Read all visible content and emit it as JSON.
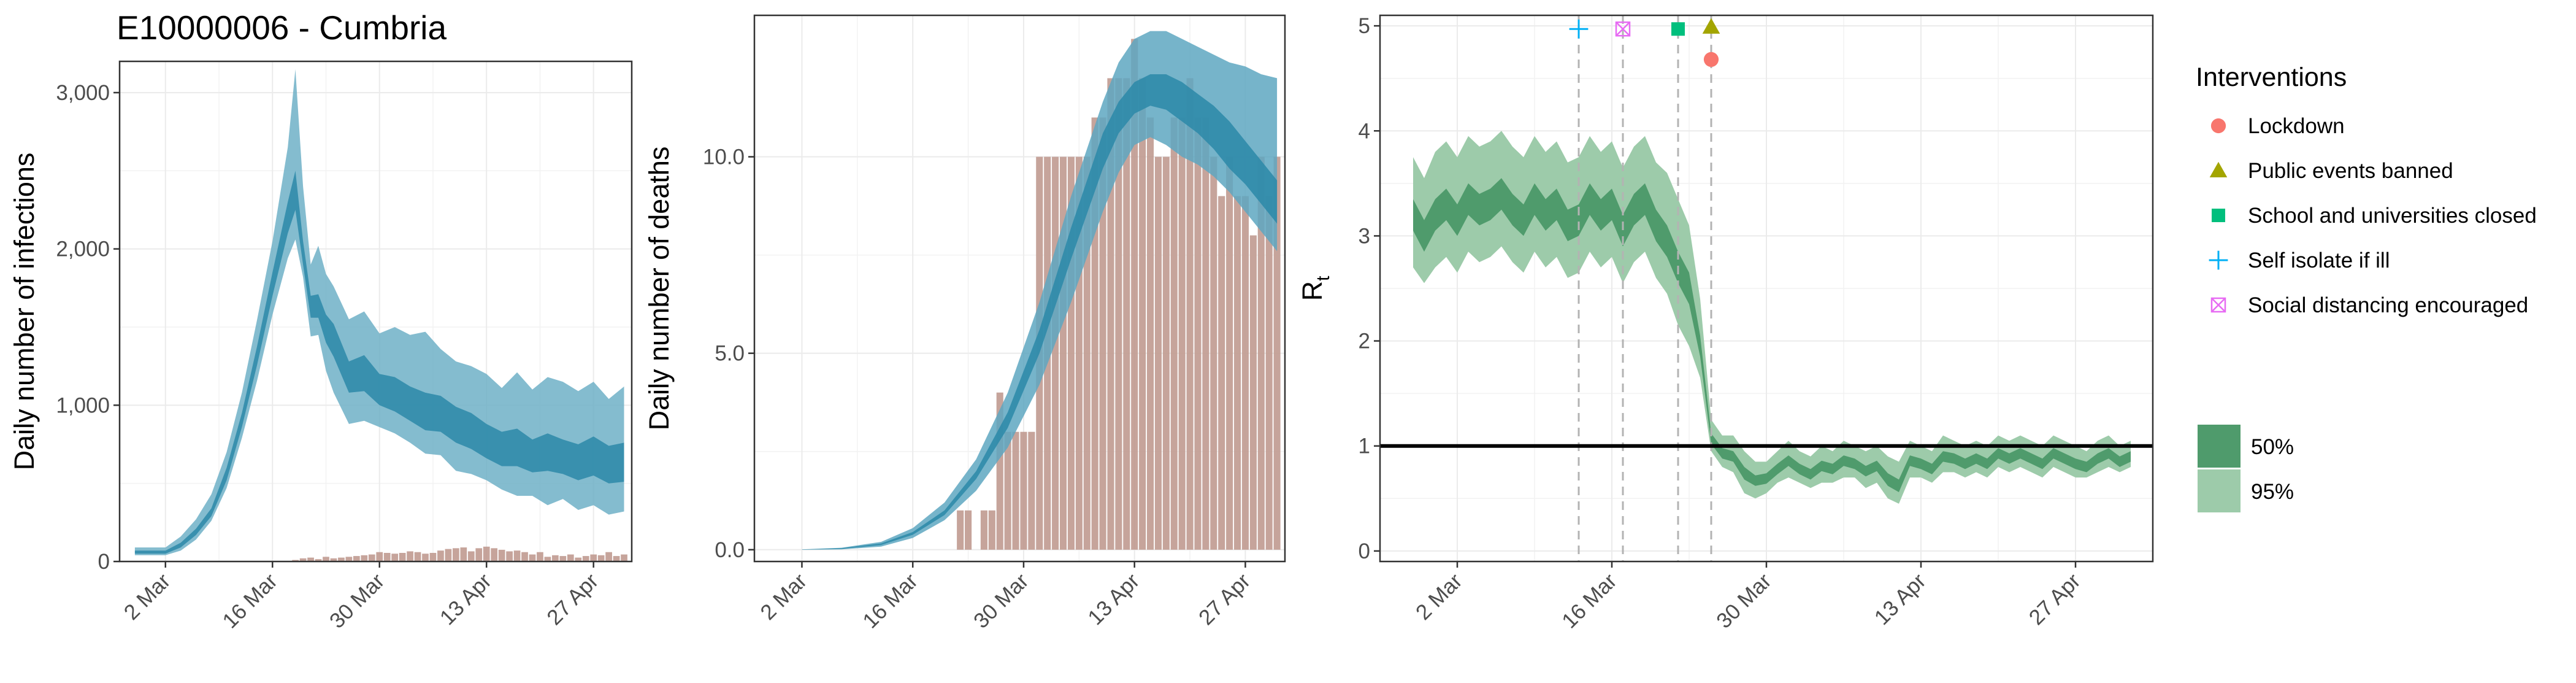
{
  "title": "E10000006 - Cumbria",
  "colors": {
    "infection_band_95": "#6fb0c7",
    "infection_band_50": "#2b88a8",
    "deaths_band_95": "#5ea7c1",
    "deaths_band_50": "#2b88a8",
    "bars": "#c09a90",
    "rt_band_95": "#9dcbaa",
    "rt_band_50": "#4f9b6c",
    "reference_line": "#000000",
    "lockdown": "#f8766d",
    "public_events_banned": "#a3a500",
    "school_closed": "#00bf7d",
    "self_isolate": "#00b0f6",
    "social_distancing": "#e76bf3"
  },
  "chart_data": [
    {
      "type": "area",
      "id": "infections",
      "title": "",
      "xlabel": "",
      "ylabel": "Daily number of infections",
      "x_ticks": [
        "2 Mar",
        "16 Mar",
        "30 Mar",
        "13 Apr",
        "27 Apr"
      ],
      "x_tick_days": [
        0,
        14,
        28,
        42,
        56
      ],
      "x_range_days": [
        -6,
        61
      ],
      "y_ticks": [
        "0",
        "1,000",
        "2,000",
        "3,000"
      ],
      "y_tick_values": [
        0,
        1000,
        2000,
        3000
      ],
      "ylim": [
        0,
        3200
      ],
      "grid": true,
      "band_95": {
        "x_days": [
          -4,
          0,
          2,
          4,
          6,
          8,
          10,
          12,
          14,
          16,
          17,
          18,
          19,
          20,
          21,
          22,
          24,
          26,
          28,
          30,
          32,
          34,
          36,
          38,
          40,
          42,
          44,
          46,
          48,
          50,
          52,
          54,
          56,
          58,
          60
        ],
        "upper": [
          90,
          90,
          160,
          270,
          430,
          700,
          1080,
          1550,
          2050,
          2650,
          3150,
          2400,
          1900,
          2020,
          1840,
          1760,
          1550,
          1600,
          1460,
          1500,
          1450,
          1470,
          1360,
          1280,
          1250,
          1200,
          1110,
          1210,
          1100,
          1180,
          1150,
          1090,
          1150,
          1040,
          1120
        ],
        "lower": [
          40,
          40,
          70,
          140,
          260,
          470,
          790,
          1160,
          1580,
          1940,
          2060,
          1820,
          1440,
          1450,
          1220,
          1080,
          880,
          900,
          860,
          820,
          760,
          690,
          680,
          580,
          560,
          520,
          460,
          420,
          420,
          360,
          400,
          330,
          360,
          300,
          320
        ]
      },
      "band_50": {
        "x_days": [
          -4,
          0,
          2,
          4,
          6,
          8,
          10,
          12,
          14,
          16,
          17,
          18,
          19,
          20,
          21,
          22,
          24,
          26,
          28,
          30,
          32,
          34,
          36,
          38,
          40,
          42,
          44,
          46,
          48,
          50,
          52,
          54,
          56,
          58,
          60
        ],
        "upper": [
          70,
          70,
          120,
          210,
          340,
          600,
          950,
          1380,
          1850,
          2300,
          2500,
          2050,
          1700,
          1710,
          1580,
          1520,
          1280,
          1320,
          1200,
          1180,
          1120,
          1080,
          1060,
          990,
          950,
          880,
          830,
          850,
          780,
          820,
          780,
          750,
          800,
          740,
          760
        ],
        "lower": [
          50,
          50,
          90,
          170,
          290,
          520,
          860,
          1260,
          1700,
          2100,
          2250,
          1900,
          1560,
          1560,
          1400,
          1310,
          1080,
          1090,
          1000,
          960,
          900,
          840,
          830,
          760,
          720,
          660,
          610,
          610,
          570,
          580,
          560,
          520,
          550,
          500,
          510
        ]
      },
      "bars": {
        "x_days": [
          17,
          18,
          19,
          20,
          21,
          22,
          23,
          24,
          25,
          26,
          27,
          28,
          29,
          30,
          31,
          32,
          33,
          34,
          35,
          36,
          37,
          38,
          39,
          40,
          41,
          42,
          43,
          44,
          45,
          46,
          47,
          48,
          49,
          50,
          51,
          52,
          53,
          54,
          55,
          56,
          57,
          58,
          59,
          60
        ],
        "values": [
          10,
          20,
          25,
          15,
          30,
          20,
          25,
          30,
          35,
          40,
          45,
          60,
          55,
          50,
          55,
          65,
          60,
          50,
          55,
          70,
          80,
          85,
          90,
          65,
          85,
          95,
          85,
          75,
          65,
          70,
          60,
          45,
          60,
          30,
          40,
          35,
          45,
          25,
          35,
          45,
          40,
          60,
          35,
          45
        ]
      }
    },
    {
      "type": "area",
      "id": "deaths",
      "title": "",
      "xlabel": "",
      "ylabel": "Daily number of deaths",
      "x_ticks": [
        "2 Mar",
        "16 Mar",
        "30 Mar",
        "13 Apr",
        "27 Apr"
      ],
      "x_tick_days": [
        0,
        14,
        28,
        42,
        56
      ],
      "x_range_days": [
        -6,
        61
      ],
      "y_ticks": [
        "0.0",
        "5.0",
        "10.0"
      ],
      "y_tick_values": [
        0,
        5,
        10
      ],
      "ylim": [
        -0.3,
        13.6
      ],
      "grid": true,
      "band_95": {
        "x_days": [
          0,
          5,
          10,
          14,
          18,
          22,
          26,
          30,
          34,
          38,
          40,
          42,
          44,
          46,
          48,
          50,
          52,
          54,
          56,
          58,
          60
        ],
        "upper": [
          0.01,
          0.05,
          0.2,
          0.55,
          1.2,
          2.3,
          4.0,
          6.3,
          9.0,
          11.4,
          12.4,
          13.0,
          13.2,
          13.2,
          13.0,
          12.8,
          12.6,
          12.4,
          12.3,
          12.1,
          12.0
        ],
        "lower": [
          0,
          0.01,
          0.08,
          0.3,
          0.75,
          1.5,
          2.6,
          4.2,
          6.3,
          8.6,
          9.6,
          10.3,
          10.5,
          10.3,
          10.0,
          9.8,
          9.5,
          9.1,
          8.6,
          8.1,
          7.6
        ]
      },
      "band_50": {
        "x_days": [
          0,
          5,
          10,
          14,
          18,
          22,
          26,
          30,
          34,
          38,
          40,
          42,
          44,
          46,
          48,
          50,
          52,
          54,
          56,
          58,
          60
        ],
        "upper": [
          0.005,
          0.04,
          0.16,
          0.45,
          1.0,
          2.0,
          3.5,
          5.6,
          8.2,
          10.6,
          11.4,
          11.9,
          12.1,
          12.1,
          11.9,
          11.6,
          11.3,
          10.9,
          10.4,
          9.9,
          9.4
        ],
        "lower": [
          0,
          0.02,
          0.12,
          0.38,
          0.88,
          1.8,
          3.1,
          5.0,
          7.4,
          9.7,
          10.6,
          11.1,
          11.3,
          11.2,
          10.9,
          10.6,
          10.2,
          9.7,
          9.3,
          8.8,
          8.3
        ]
      },
      "bars": {
        "x_days": [
          20,
          21,
          22,
          23,
          24,
          25,
          26,
          27,
          28,
          29,
          30,
          31,
          32,
          33,
          34,
          35,
          36,
          37,
          38,
          39,
          40,
          41,
          42,
          43,
          44,
          45,
          46,
          47,
          48,
          49,
          50,
          51,
          52,
          53,
          54,
          55,
          56,
          57,
          58,
          59,
          60
        ],
        "values": [
          1,
          1,
          0,
          1,
          1,
          4,
          3,
          3,
          3,
          3,
          10,
          10,
          10,
          10,
          10,
          10,
          10,
          11,
          11,
          12,
          12,
          12,
          13,
          12,
          11,
          10,
          10,
          11,
          11,
          12,
          11,
          11,
          10,
          9,
          10,
          9,
          9,
          8,
          10,
          9,
          10
        ]
      }
    },
    {
      "type": "area",
      "id": "rt",
      "title": "",
      "xlabel": "",
      "ylabel": "R",
      "ylabel_subscript": "t",
      "x_ticks": [
        "2 Mar",
        "16 Mar",
        "30 Mar",
        "13 Apr",
        "27 Apr"
      ],
      "x_tick_days": [
        0,
        14,
        28,
        42,
        56
      ],
      "x_range_days": [
        -7,
        63
      ],
      "y_ticks": [
        "0",
        "1",
        "2",
        "3",
        "4",
        "5"
      ],
      "y_tick_values": [
        0,
        1,
        2,
        3,
        4,
        5
      ],
      "ylim": [
        -0.1,
        5.1
      ],
      "grid": true,
      "reference_line_y": 1,
      "intervention_days": [
        11,
        15,
        20,
        23
      ],
      "band_95": {
        "x_days": [
          -4,
          -3,
          -2,
          -1,
          0,
          1,
          2,
          3,
          4,
          5,
          6,
          7,
          8,
          9,
          10,
          11,
          12,
          13,
          14,
          15,
          16,
          17,
          18,
          19,
          20,
          21,
          22,
          23,
          24,
          25,
          26,
          27,
          28,
          29,
          30,
          31,
          32,
          33,
          34,
          35,
          36,
          37,
          38,
          39,
          40,
          41,
          42,
          43,
          44,
          45,
          46,
          47,
          48,
          49,
          50,
          51,
          52,
          53,
          54,
          55,
          56,
          57,
          58,
          59,
          60,
          61
        ],
        "upper": [
          3.75,
          3.55,
          3.8,
          3.9,
          3.75,
          3.95,
          3.85,
          3.9,
          4.0,
          3.85,
          3.75,
          3.95,
          3.8,
          3.9,
          3.7,
          3.75,
          3.95,
          3.8,
          3.9,
          3.65,
          3.85,
          3.95,
          3.7,
          3.6,
          3.35,
          3.1,
          2.4,
          1.25,
          1.1,
          1.1,
          0.95,
          0.85,
          0.85,
          0.95,
          1.05,
          0.95,
          0.9,
          1.0,
          0.95,
          1.05,
          1.0,
          0.95,
          1.0,
          0.9,
          0.85,
          1.05,
          1.0,
          0.95,
          1.1,
          1.05,
          1.0,
          1.05,
          1.0,
          1.1,
          1.05,
          1.1,
          1.05,
          1.0,
          1.1,
          1.05,
          1.0,
          0.95,
          1.05,
          1.1,
          1.0,
          1.05
        ],
        "lower": [
          2.7,
          2.55,
          2.7,
          2.8,
          2.65,
          2.85,
          2.75,
          2.8,
          2.9,
          2.75,
          2.65,
          2.85,
          2.7,
          2.8,
          2.6,
          2.65,
          2.85,
          2.7,
          2.8,
          2.55,
          2.75,
          2.85,
          2.6,
          2.45,
          2.15,
          1.95,
          1.65,
          0.95,
          0.8,
          0.75,
          0.55,
          0.5,
          0.55,
          0.65,
          0.7,
          0.65,
          0.6,
          0.65,
          0.65,
          0.7,
          0.7,
          0.6,
          0.65,
          0.5,
          0.45,
          0.7,
          0.7,
          0.65,
          0.75,
          0.75,
          0.7,
          0.75,
          0.7,
          0.8,
          0.75,
          0.8,
          0.75,
          0.7,
          0.8,
          0.75,
          0.7,
          0.7,
          0.75,
          0.8,
          0.75,
          0.8
        ]
      },
      "band_50": {
        "x_days": [
          -4,
          -3,
          -2,
          -1,
          0,
          1,
          2,
          3,
          4,
          5,
          6,
          7,
          8,
          9,
          10,
          11,
          12,
          13,
          14,
          15,
          16,
          17,
          18,
          19,
          20,
          21,
          22,
          23,
          24,
          25,
          26,
          27,
          28,
          29,
          30,
          31,
          32,
          33,
          34,
          35,
          36,
          37,
          38,
          39,
          40,
          41,
          42,
          43,
          44,
          45,
          46,
          47,
          48,
          49,
          50,
          51,
          52,
          53,
          54,
          55,
          56,
          57,
          58,
          59,
          60,
          61
        ],
        "upper": [
          3.35,
          3.15,
          3.35,
          3.45,
          3.3,
          3.5,
          3.4,
          3.45,
          3.55,
          3.4,
          3.3,
          3.5,
          3.35,
          3.45,
          3.25,
          3.3,
          3.5,
          3.35,
          3.45,
          3.2,
          3.4,
          3.5,
          3.25,
          3.1,
          2.85,
          2.65,
          2.05,
          1.12,
          0.98,
          0.95,
          0.8,
          0.72,
          0.74,
          0.83,
          0.91,
          0.83,
          0.78,
          0.86,
          0.83,
          0.91,
          0.88,
          0.81,
          0.86,
          0.74,
          0.68,
          0.91,
          0.88,
          0.83,
          0.95,
          0.93,
          0.88,
          0.93,
          0.88,
          0.98,
          0.93,
          0.98,
          0.93,
          0.88,
          0.98,
          0.93,
          0.88,
          0.85,
          0.93,
          0.98,
          0.9,
          0.95
        ],
        "lower": [
          3.05,
          2.85,
          3.05,
          3.15,
          3.0,
          3.2,
          3.1,
          3.15,
          3.25,
          3.1,
          3.0,
          3.2,
          3.05,
          3.15,
          2.95,
          3.0,
          3.2,
          3.05,
          3.15,
          2.9,
          3.1,
          3.2,
          2.95,
          2.8,
          2.55,
          2.35,
          1.85,
          1.02,
          0.88,
          0.85,
          0.68,
          0.62,
          0.64,
          0.73,
          0.81,
          0.73,
          0.68,
          0.76,
          0.73,
          0.81,
          0.78,
          0.71,
          0.76,
          0.62,
          0.56,
          0.81,
          0.78,
          0.73,
          0.85,
          0.83,
          0.78,
          0.83,
          0.78,
          0.88,
          0.83,
          0.88,
          0.83,
          0.78,
          0.88,
          0.83,
          0.78,
          0.75,
          0.83,
          0.88,
          0.8,
          0.85
        ]
      },
      "markers": [
        {
          "label": "Self isolate if ill",
          "shape": "plus",
          "day": 11,
          "value": 4.97
        },
        {
          "label": "Social distancing encouraged",
          "shape": "boxx",
          "day": 15,
          "value": 4.97
        },
        {
          "label": "School and universities closed",
          "shape": "square",
          "day": 20,
          "value": 4.97
        },
        {
          "label": "Public events banned",
          "shape": "triangle",
          "day": 23,
          "value": 4.99
        },
        {
          "label": "Lockdown",
          "shape": "circle",
          "day": 23,
          "value": 4.68
        }
      ]
    }
  ],
  "legend": {
    "title": "Interventions",
    "items": [
      {
        "label": "Lockdown",
        "shape": "circle",
        "color": "#f8766d"
      },
      {
        "label": "Public events banned",
        "shape": "triangle",
        "color": "#a3a500"
      },
      {
        "label": "School and universities closed",
        "shape": "square",
        "color": "#00bf7d"
      },
      {
        "label": "Self isolate if ill",
        "shape": "plus",
        "color": "#00b0f6"
      },
      {
        "label": "Social distancing encouraged",
        "shape": "boxx",
        "color": "#e76bf3"
      }
    ],
    "ci_items": [
      {
        "label": "50%",
        "color": "#4f9b6c"
      },
      {
        "label": "95%",
        "color": "#9dcbaa"
      }
    ]
  }
}
